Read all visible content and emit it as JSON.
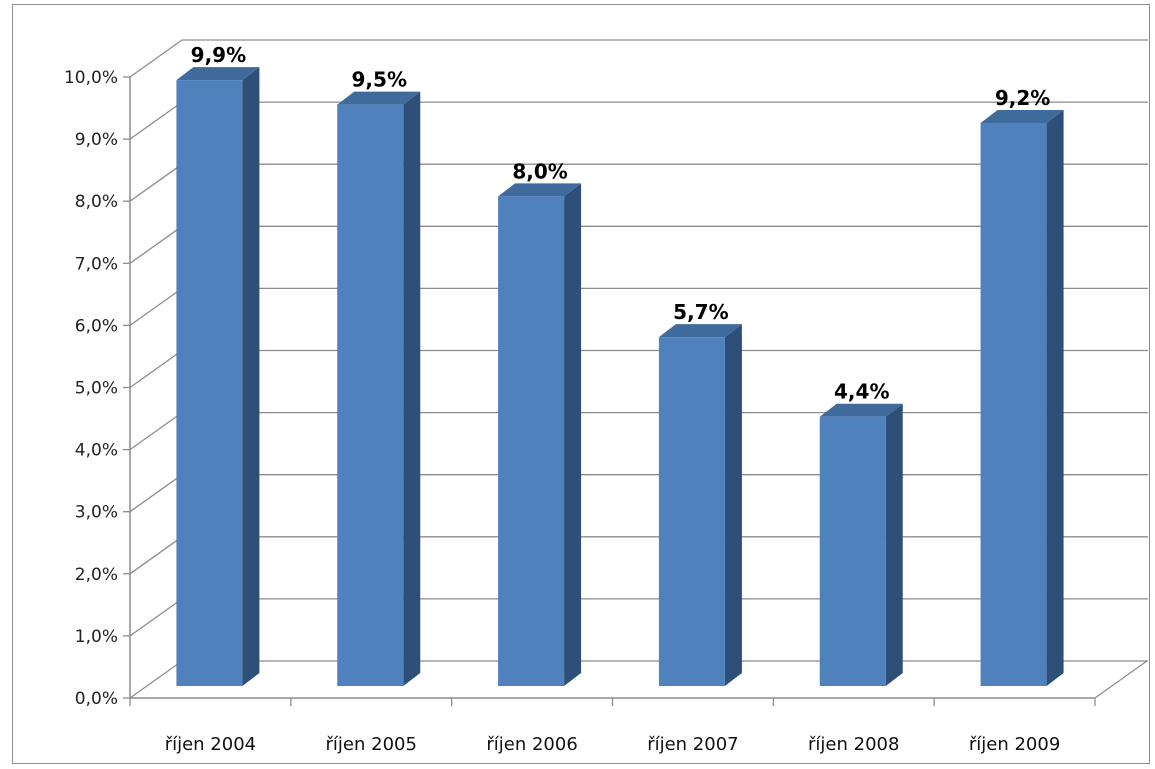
{
  "chart_data": {
    "type": "bar",
    "style": "3d-column",
    "categories": [
      "říjen 2004",
      "říjen 2005",
      "říjen 2006",
      "říjen 2007",
      "říjen 2008",
      "říjen 2009"
    ],
    "series": [
      {
        "values": [
          9.9,
          9.5,
          8.0,
          5.7,
          4.4,
          9.2
        ],
        "data_labels": [
          "9,9%",
          "9,5%",
          "8,0%",
          "5,7%",
          "4,4%",
          "9,2%"
        ]
      }
    ],
    "title": "",
    "xlabel": "",
    "ylabel": "",
    "ylim": [
      0,
      10
    ],
    "y_ticks": [
      0,
      1,
      2,
      3,
      4,
      5,
      6,
      7,
      8,
      9,
      10
    ],
    "y_tick_labels": [
      "0,0%",
      "1,0%",
      "2,0%",
      "3,0%",
      "4,0%",
      "5,0%",
      "6,0%",
      "7,0%",
      "8,0%",
      "9,0%",
      "10,0%"
    ],
    "grid": true,
    "legend": "none",
    "colors": {
      "bar_front": "#4f81bd",
      "bar_side": "#2e5078",
      "bar_top": "#3e6a9c",
      "grid": "#8c8c8c",
      "axis": "#8c8c8c"
    }
  }
}
